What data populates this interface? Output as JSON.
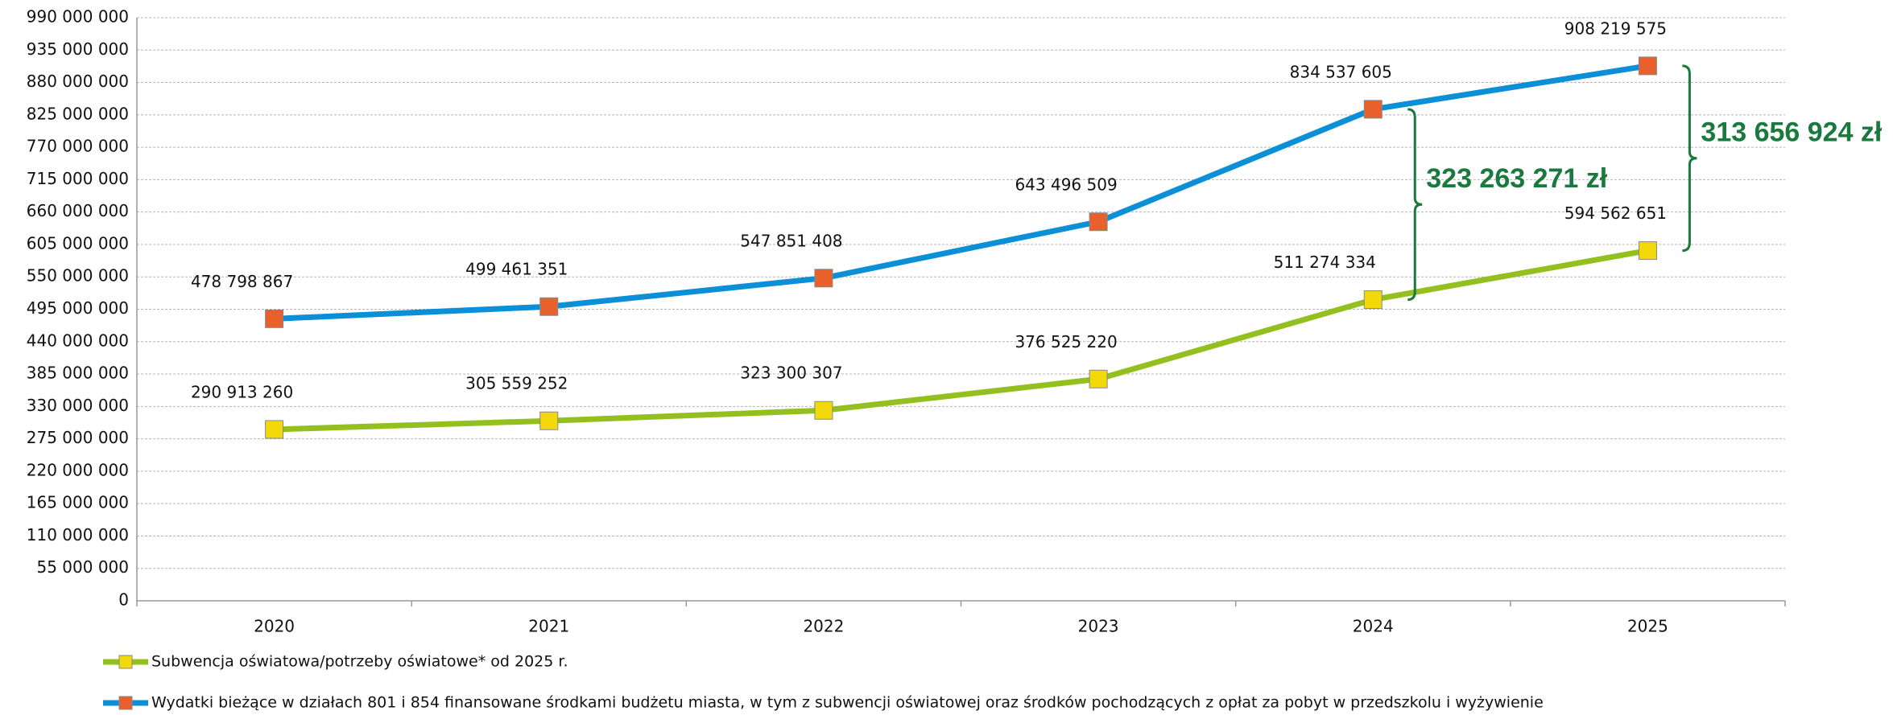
{
  "chart_data": {
    "type": "line",
    "categories": [
      "2020",
      "2021",
      "2022",
      "2023",
      "2024",
      "2025"
    ],
    "series": [
      {
        "name": "Subwencja oświatowa/potrzeby oświatowe* od 2025 r.",
        "color": "#93c01f",
        "marker_color": "#f3d90a",
        "values": [
          290913260,
          305559252,
          323300307,
          376525220,
          511274334,
          594562651
        ],
        "value_labels": [
          "290 913 260",
          "305 559 252",
          "323 300 307",
          "376 525 220",
          "511 274 334",
          "594 562 651"
        ]
      },
      {
        "name": "Wydatki bieżące w działach 801 i 854 finansowane środkami budżetu miasta, w tym z subwencji oświatowej oraz środków pochodzących z opłat za pobyt w przedszkolu i wyżywienie",
        "color": "#0b8fd6",
        "marker_color": "#e8602c",
        "values": [
          478798867,
          499461351,
          547851408,
          643496509,
          834537605,
          908219575
        ],
        "value_labels": [
          "478 798 867",
          "499 461 351",
          "547 851 408",
          "643 496 509",
          "834 537 605",
          "908 219 575"
        ]
      }
    ],
    "ylim": [
      0,
      990000000
    ],
    "yticks": [
      0,
      {
        "value": 55000000,
        "label": "55 000 000"
      },
      {
        "value": 110000000,
        "label": "110 000 000"
      },
      {
        "value": 165000000,
        "label": "165 000 000"
      },
      {
        "value": 220000000,
        "label": "220 000 000"
      },
      {
        "value": 275000000,
        "label": "275 000 000"
      },
      {
        "value": 330000000,
        "label": "330 000 000"
      },
      {
        "value": 385000000,
        "label": "385 000 000"
      },
      {
        "value": 440000000,
        "label": "440 000 000"
      },
      {
        "value": 495000000,
        "label": "495 000 000"
      },
      {
        "value": 550000000,
        "label": "550 000 000"
      },
      {
        "value": 605000000,
        "label": "605 000 000"
      },
      {
        "value": 660000000,
        "label": "660 000 000"
      },
      {
        "value": 715000000,
        "label": "715 000 000"
      },
      {
        "value": 770000000,
        "label": "770 000 000"
      },
      {
        "value": 825000000,
        "label": "825 000 000"
      },
      {
        "value": 880000000,
        "label": "880 000 000"
      },
      {
        "value": 935000000,
        "label": "935 000 000"
      },
      {
        "value": 990000000,
        "label": "990 000 000"
      }
    ],
    "grid": true,
    "annotations": [
      {
        "text": "323 263 271 zł",
        "x": "2024"
      },
      {
        "text": "313 656 924 zł",
        "x": "2025"
      }
    ]
  }
}
